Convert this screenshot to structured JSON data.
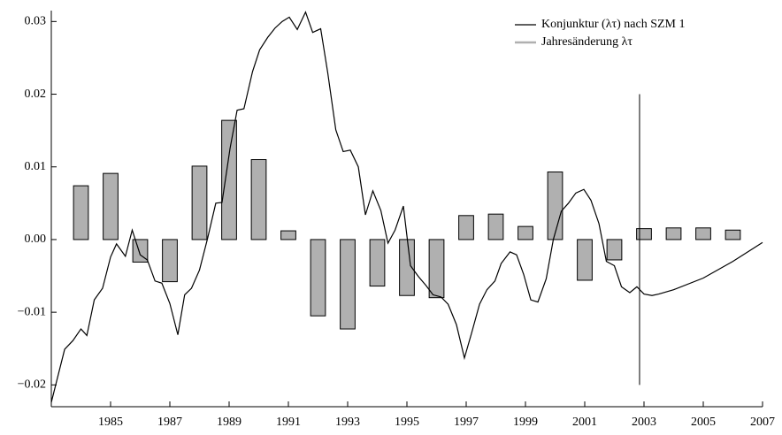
{
  "chart_data": {
    "type": "line",
    "xlim": [
      1983,
      2007
    ],
    "ylim": [
      -0.023,
      0.0315
    ],
    "xticks": [
      1985,
      1987,
      1989,
      1991,
      1993,
      1995,
      1997,
      1999,
      2001,
      2003,
      2005,
      2007
    ],
    "yticks": [
      {
        "value": -0.02,
        "label": "−0.02"
      },
      {
        "value": -0.01,
        "label": "−0.01"
      },
      {
        "value": 0,
        "label": "0.00"
      },
      0.01,
      0.02,
      0.03
    ],
    "grid": false,
    "legend": "upper right",
    "series": [
      {
        "name": "Konjunktur (λτ) nach SZM 1",
        "type": "line",
        "color": "#000000",
        "x": [
          1983.0,
          1983.45,
          1983.73,
          1984.0,
          1984.2,
          1984.45,
          1984.73,
          1985.0,
          1985.2,
          1985.5,
          1985.73,
          1986.0,
          1986.24,
          1986.5,
          1986.73,
          1987.0,
          1987.27,
          1987.5,
          1987.73,
          1988.0,
          1988.27,
          1988.55,
          1988.76,
          1989.03,
          1989.27,
          1989.5,
          1989.79,
          1990.03,
          1990.3,
          1990.55,
          1990.79,
          1991.03,
          1991.3,
          1991.58,
          1991.82,
          1992.09,
          1992.33,
          1992.6,
          1992.85,
          1993.09,
          1993.36,
          1993.6,
          1993.85,
          1994.12,
          1994.36,
          1994.6,
          1994.88,
          1995.12,
          1995.39,
          1995.64,
          1995.88,
          1996.15,
          1996.39,
          1996.67,
          1996.94,
          1997.18,
          1997.45,
          1997.7,
          1997.97,
          1998.18,
          1998.48,
          1998.7,
          1998.94,
          1999.18,
          1999.42,
          1999.7,
          1999.94,
          2000.21,
          2000.45,
          2000.7,
          2000.97,
          2001.21,
          2001.48,
          2001.73,
          2002.0,
          2002.24,
          2002.52,
          2002.76,
          2003.0,
          2003.27,
          2003.5,
          2004.0,
          2005.0,
          2006.0,
          2007.0
        ],
        "values": [
          -0.0224,
          -0.0151,
          -0.0139,
          -0.0123,
          -0.0132,
          -0.0083,
          -0.0067,
          -0.0024,
          -0.0006,
          -0.0023,
          0.0013,
          -0.0021,
          -0.0028,
          -0.0057,
          -0.006,
          -0.0088,
          -0.0131,
          -0.0076,
          -0.0067,
          -0.0042,
          0.0001,
          0.005,
          0.0051,
          0.0125,
          0.0178,
          0.018,
          0.0231,
          0.0261,
          0.0278,
          0.0291,
          0.03,
          0.0306,
          0.0289,
          0.0313,
          0.0285,
          0.029,
          0.0229,
          0.0151,
          0.0121,
          0.0123,
          0.01,
          0.0034,
          0.0067,
          0.004,
          -0.0005,
          0.0013,
          0.0046,
          -0.0036,
          -0.0051,
          -0.0063,
          -0.0076,
          -0.0079,
          -0.0089,
          -0.0117,
          -0.0163,
          -0.0129,
          -0.0089,
          -0.0069,
          -0.0057,
          -0.0033,
          -0.0017,
          -0.0021,
          -0.0048,
          -0.0083,
          -0.0086,
          -0.0054,
          0.0,
          0.0039,
          0.005,
          0.0064,
          0.0069,
          0.0054,
          0.0022,
          -0.003,
          -0.0036,
          -0.0065,
          -0.0073,
          -0.0065,
          -0.0075,
          -0.0077,
          -0.0075,
          -0.0069,
          -0.0053,
          -0.003,
          -0.0004
        ]
      },
      {
        "name": "Jahresänderung λτ",
        "type": "bar",
        "color": "#b0b0b0",
        "x": [
          1984,
          1985,
          1986,
          1987,
          1988,
          1989,
          1990,
          1991,
          1992,
          1993,
          1994,
          1995,
          1996,
          1997,
          1998,
          1999,
          2000,
          2001,
          2002,
          2003,
          2004,
          2005,
          2006
        ],
        "values": [
          0.0074,
          0.0091,
          -0.0031,
          -0.0058,
          0.0101,
          0.0164,
          0.011,
          0.0012,
          -0.0105,
          -0.0123,
          -0.0064,
          -0.0077,
          -0.008,
          0.0033,
          0.0035,
          0.0018,
          0.0093,
          -0.0056,
          -0.0028,
          0.0015,
          0.0016,
          0.0016,
          0.0013
        ]
      }
    ],
    "vline": {
      "x": 2002.85,
      "ymin": -0.02,
      "ymax": 0.02
    }
  }
}
